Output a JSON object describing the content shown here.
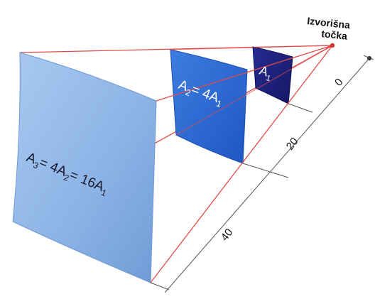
{
  "source_label": {
    "line1": "Izvorišna",
    "line2": "točka"
  },
  "surfaces": [
    {
      "id": "A1",
      "main": "A",
      "sub": "1"
    },
    {
      "id": "A2",
      "main": "A",
      "sub": "2",
      "eq": "= 4A",
      "eq_sub": "1"
    },
    {
      "id": "A3",
      "main": "A",
      "sub": "3",
      "eq1": "= 4A",
      "eq1_sub": "2",
      "eq2": "= 16A",
      "eq2_sub": "1"
    }
  ],
  "distances": [
    "0",
    "20",
    "40"
  ],
  "colors": {
    "ray": "#e04a4a",
    "a1": "#1c1f7e",
    "a2": "#2f6ed6",
    "a3": "#8eb6e8",
    "dim": "#444444"
  }
}
